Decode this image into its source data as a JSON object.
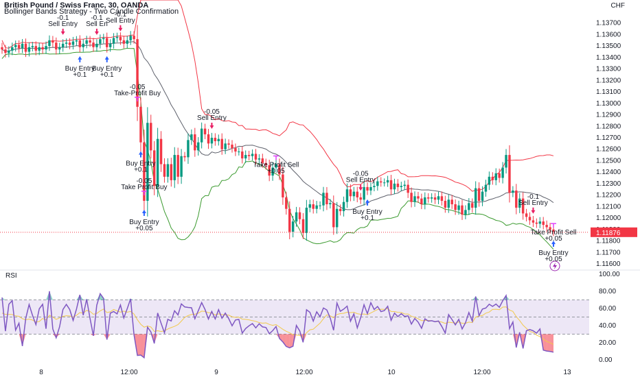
{
  "header": {
    "title": "British Pound / Swiss Franc, 30, OANDA",
    "subtitle": "Bollinger Bands Strategy - Two Candle Confirmation",
    "currency": "CHF",
    "rsi_label": "RSI"
  },
  "colors": {
    "up": "#089981",
    "down": "#f23645",
    "bb_upper": "#f23645",
    "bb_lower": "#3a9a2e",
    "bb_basis": "#5d606b",
    "rsi_line": "#7e57c2",
    "rsi_ma": "#f2c94c",
    "rsi_band": "#ede7f6",
    "last_price_tag": "#f23645",
    "buy_arrow": "#2962ff",
    "sell_arrow": "#e91e63",
    "tp_marker": "#e040fb"
  },
  "chart_data": [
    {
      "type": "candlestick",
      "name": "British Pound / Swiss Franc, 30, OANDA",
      "y_axis_ticks": [
        "1.13700",
        "1.13600",
        "1.13500",
        "1.13400",
        "1.13300",
        "1.13200",
        "1.13100",
        "1.13000",
        "1.12900",
        "1.12800",
        "1.12700",
        "1.12600",
        "1.12500",
        "1.12400",
        "1.12300",
        "1.12200",
        "1.12100",
        "1.12000",
        "1.11900",
        "1.11800",
        "1.11700",
        "1.11600"
      ],
      "ylim": [
        1.1157,
        1.1377
      ],
      "last_price": "1.11876",
      "x_axis_ticks": [
        "8",
        "12:00",
        "9",
        "12:00",
        "10",
        "12:00",
        "13"
      ],
      "close": [
        1.1347,
        1.1344,
        1.1346,
        1.1349,
        1.1351,
        1.1348,
        1.1352,
        1.1345,
        1.1349,
        1.135,
        1.1346,
        1.1349,
        1.1347,
        1.135,
        1.1355,
        1.1353,
        1.1347,
        1.1349,
        1.1352,
        1.1353,
        1.1351,
        1.1354,
        1.1355,
        1.1349,
        1.1352,
        1.1355,
        1.1353,
        1.1349,
        1.1352,
        1.1356,
        1.1357,
        1.1349,
        1.1352,
        1.1357,
        1.1358,
        1.1355,
        1.1352,
        1.1355,
        1.1359,
        1.1356,
        1.1297,
        1.1266,
        1.1215,
        1.1283,
        1.1259,
        1.1228,
        1.1269,
        1.1247,
        1.1236,
        1.1247,
        1.1233,
        1.1255,
        1.1236,
        1.1254,
        1.1253,
        1.1268,
        1.1273,
        1.1259,
        1.1266,
        1.1278,
        1.1273,
        1.1265,
        1.127,
        1.1267,
        1.1269,
        1.126,
        1.1265,
        1.1264,
        1.1261,
        1.1258,
        1.1258,
        1.1252,
        1.1255,
        1.1254,
        1.1256,
        1.1251,
        1.1252,
        1.1248,
        1.1246,
        1.1237,
        1.1244,
        1.1247,
        1.1238,
        1.1218,
        1.1208,
        1.1188,
        1.1197,
        1.1205,
        1.1199,
        1.1187,
        1.1209,
        1.1212,
        1.1208,
        1.1211,
        1.1211,
        1.1222,
        1.1212,
        1.1213,
        1.1192,
        1.1208,
        1.1206,
        1.1214,
        1.1225,
        1.1219,
        1.1223,
        1.1218,
        1.1216,
        1.1227,
        1.1224,
        1.1227,
        1.1228,
        1.1232,
        1.1231,
        1.1231,
        1.1233,
        1.1225,
        1.123,
        1.1227,
        1.1228,
        1.1229,
        1.1222,
        1.1214,
        1.1219,
        1.1217,
        1.1212,
        1.1218,
        1.1217,
        1.1218,
        1.1216,
        1.1219,
        1.1215,
        1.1209,
        1.1216,
        1.1212,
        1.1207,
        1.1211,
        1.1203,
        1.1207,
        1.1213,
        1.1209,
        1.1226,
        1.1215,
        1.1223,
        1.1229,
        1.1236,
        1.1233,
        1.1239,
        1.1235,
        1.1244,
        1.1255,
        1.1222,
        1.1224,
        1.1209,
        1.1217,
        1.1204,
        1.1201,
        1.1198,
        1.1196,
        1.1195,
        1.1197,
        1.1194,
        1.1192,
        1.119,
        1.1188
      ],
      "bb_upper_end": 1.1243,
      "bb_basis_end": 1.121,
      "bb_lower_end": 1.1172
    },
    {
      "type": "line",
      "name": "RSI",
      "y_axis_ticks": [
        "100.00",
        "80.00",
        "60.00",
        "40.00",
        "20.00",
        "0.00"
      ],
      "ylim": [
        0,
        100
      ],
      "band": [
        30,
        70
      ],
      "mid": 50,
      "series": [
        {
          "name": "RSI",
          "values": [
            72.8,
            33.5,
            64.9,
            69.1,
            34.7,
            42.8,
            16.1,
            48.5,
            64.6,
            52.1,
            41.1,
            59.6,
            64.9,
            36.3,
            80.2,
            36,
            25.8,
            38.4,
            58.9,
            64.7,
            58.8,
            46.1,
            59.4,
            75.9,
            52.1,
            70.8,
            48.4,
            28.1,
            63.8,
            77.3,
            71.8,
            23.6,
            54.5,
            56.4,
            53.6,
            64,
            48.9,
            59.8,
            71.2,
            29.5,
            5.2,
            5.6,
            2.6,
            38.2,
            32.6,
            19.1,
            54.7,
            43,
            31.6,
            47.4,
            45.4,
            57.3,
            52.5,
            65.4,
            61.8,
            61.2,
            60.8,
            48.1,
            57.3,
            66.9,
            58.7,
            47.6,
            56.6,
            47.8,
            58.6,
            48.6,
            54.6,
            48.1,
            39.8,
            46.6,
            47.2,
            31.3,
            36.6,
            39.8,
            42.4,
            37.4,
            42.2,
            38.5,
            37.8,
            30.6,
            34.1,
            39,
            24.9,
            20.9,
            15.7,
            14.1,
            15.9,
            40.2,
            33.8,
            20.5,
            58.5,
            55.5,
            45.2,
            56.1,
            50.3,
            60.6,
            58.3,
            48.9,
            34.6,
            66.3,
            56.7,
            59.3,
            62.7,
            45.1,
            53.7,
            37.4,
            49.3,
            64.3,
            53.9,
            66.7,
            58.8,
            62.3,
            56.3,
            57.5,
            62.6,
            46.1,
            54.6,
            50.5,
            53.9,
            50.7,
            51.4,
            41.8,
            48.3,
            44.1,
            36.9,
            47.9,
            45.2,
            45.7,
            44.6,
            45.4,
            39,
            31.3,
            52.9,
            47.1,
            40.9,
            47.4,
            36.1,
            43.4,
            55.3,
            45.1,
            74,
            51.6,
            59.3,
            60.5,
            64.9,
            62.4,
            65.1,
            61.4,
            69,
            75.1,
            36.5,
            44.2,
            14.4,
            32.2,
            13.3,
            34.1,
            35.4,
            33.9,
            31.2,
            36.1,
            11.4,
            10.3,
            9.8,
            9
          ]
        },
        {
          "name": "RSI MA",
          "values": [
            54.6,
            53.1,
            53.1,
            52.9,
            51.4,
            50.8,
            48.1,
            46.7,
            47.6,
            46.5,
            44.1,
            44.8,
            48.3,
            46.6,
            52.1,
            49.9,
            47.3,
            49,
            50.8,
            51.5,
            51.3,
            49.8,
            52.1,
            55.2,
            54.4,
            57.8,
            56.6,
            53.2,
            54.2,
            57.2,
            59.3,
            55.2,
            56.1,
            58.8,
            57.1,
            55.8,
            56.9,
            55.6,
            56.6,
            53.5,
            46.8,
            41.5,
            38.2,
            39.6,
            38.3,
            33.2,
            34,
            33.1,
            33.8,
            36.1,
            37.7,
            39.1,
            41.1,
            45.2,
            49.6,
            51.7,
            53,
            53.3,
            54.5,
            56.9,
            56.5,
            55.1,
            54.7,
            52.5,
            53.7,
            52.9,
            52.4,
            52.2,
            50.3,
            49.6,
            49.9,
            47.5,
            47.3,
            46.7,
            45.8,
            45,
            43.5,
            42.8,
            43.2,
            41.4,
            40.3,
            41.2,
            38.4,
            35.7,
            33.4,
            31.7,
            29.4,
            29,
            28.4,
            26.6,
            31.6,
            35.1,
            35.8,
            39.4,
            42.9,
            48,
            52.5,
            51.3,
            49.2,
            53,
            54,
            54.4,
            55.6,
            55.1,
            55.6,
            53.9,
            53.2,
            53.5,
            52.7,
            54.7,
            56.7,
            58.7,
            59.1,
            59,
            59.9,
            56.5,
            56.4,
            55.5,
            55.3,
            53.6,
            53.5,
            51,
            49.8,
            48.1,
            45.8,
            46,
            46,
            45.7,
            44.7,
            44.8,
            44.1,
            42.6,
            44,
            43.5,
            42.9,
            44.3,
            42.7,
            42.7,
            44.1,
            43.5,
            49.9,
            51.1,
            51.8,
            54.6,
            55.8,
            58.9,
            59.1,
            58.6,
            61.6,
            61.8,
            58.2,
            56.6,
            50.4,
            45.9,
            40.5,
            36.8,
            33.2,
            32.1,
            28.9,
            27.1,
            24.2,
            21.6,
            19.9,
            18.1
          ]
        }
      ]
    }
  ],
  "signals": [
    {
      "kind": "sell",
      "label": "Sell Entry",
      "pnl": "-0.1",
      "bar": 18
    },
    {
      "kind": "sell",
      "label": "Sell En",
      "pnl": "-0.1",
      "bar": 28
    },
    {
      "kind": "sell",
      "label": "Sell Entry",
      "pnl": "-0.1",
      "bar": 35
    },
    {
      "kind": "tp_buy",
      "label": "Take-Profit Buy",
      "pnl": "-0.05",
      "bar": 40
    },
    {
      "kind": "buy",
      "label": "Buy Entry",
      "pnl": "+0.1",
      "bar": 23
    },
    {
      "kind": "buy",
      "label": "Buy Entry",
      "pnl": "+0.1",
      "bar": 31
    },
    {
      "kind": "tp_buy",
      "label": "Take Profit Buy",
      "pnl": "-0.05",
      "bar": 42
    },
    {
      "kind": "buy",
      "label": "Buy Entry",
      "pnl": "+0.1",
      "bar": 41
    },
    {
      "kind": "buy",
      "label": "Buy Entry",
      "pnl": "+0.05",
      "bar": 42
    },
    {
      "kind": "sell",
      "label": "Sell Entry",
      "pnl": "-0.05",
      "bar": 62
    },
    {
      "kind": "tp_sell",
      "label": "Take Profit Sell",
      "pnl": "+0.05",
      "bar": 81
    },
    {
      "kind": "sell",
      "label": "Sell Entry",
      "pnl": "-0.05",
      "bar": 106
    },
    {
      "kind": "buy",
      "label": "Buy Entry",
      "pnl": "+0.1",
      "bar": 108
    },
    {
      "kind": "sell",
      "label": "Sell Entry",
      "pnl": "-0.1",
      "bar": 157
    },
    {
      "kind": "tp_sell",
      "label": "Take Profit Sell",
      "pnl": "+0.05",
      "bar": 163
    },
    {
      "kind": "buy",
      "label": "Buy Entry",
      "pnl": "+0.05",
      "bar": 168
    }
  ]
}
